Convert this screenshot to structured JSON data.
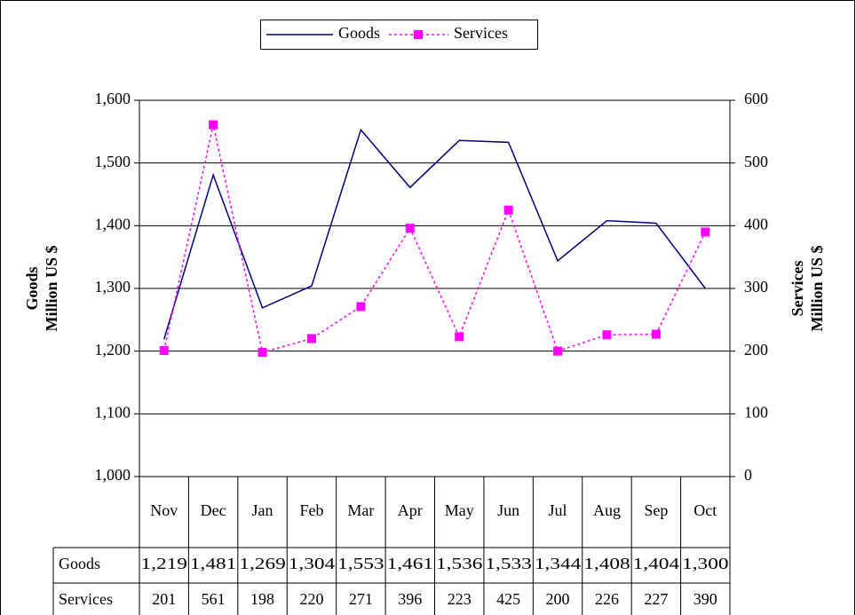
{
  "chart_data": {
    "type": "line",
    "categories": [
      "Nov",
      "Dec",
      "Jan",
      "Feb",
      "Mar",
      "Apr",
      "May",
      "Jun",
      "Jul",
      "Aug",
      "Sep",
      "Oct"
    ],
    "series": [
      {
        "name": "Goods",
        "color": "#000080",
        "values": [
          1219,
          1481,
          1269,
          1304,
          1553,
          1461,
          1536,
          1533,
          1344,
          1408,
          1404,
          1300
        ],
        "value_labels": [
          "1,219",
          "1,481",
          "1,269",
          "1,304",
          "1,553",
          "1,461",
          "1,536",
          "1,533",
          "1,344",
          "1,408",
          "1,404",
          "1,300"
        ]
      },
      {
        "name": "Services",
        "color": "#ff00ff",
        "axis": "y2",
        "values": [
          201,
          561,
          198,
          220,
          271,
          396,
          223,
          425,
          200,
          226,
          227,
          390
        ]
      }
    ],
    "ylabel": [
      "Goods",
      "Million US $"
    ],
    "y2label": [
      "Services",
      "Million US $"
    ],
    "ylim": [
      1000,
      1600
    ],
    "yticks": [
      {
        "value": 1000,
        "label": "1,000"
      },
      {
        "value": 1100,
        "label": "1,100"
      },
      {
        "value": 1200,
        "label": "1,200"
      },
      {
        "value": 1300,
        "label": "1,300"
      },
      {
        "value": 1400,
        "label": "1,400"
      },
      {
        "value": 1500,
        "label": "1,500"
      },
      {
        "value": 1600,
        "label": "1,600"
      }
    ],
    "y2lim": [
      0,
      600
    ],
    "y2ticks": [
      0,
      100,
      200,
      300,
      400,
      500,
      600
    ],
    "grid": true,
    "legend": "top"
  }
}
